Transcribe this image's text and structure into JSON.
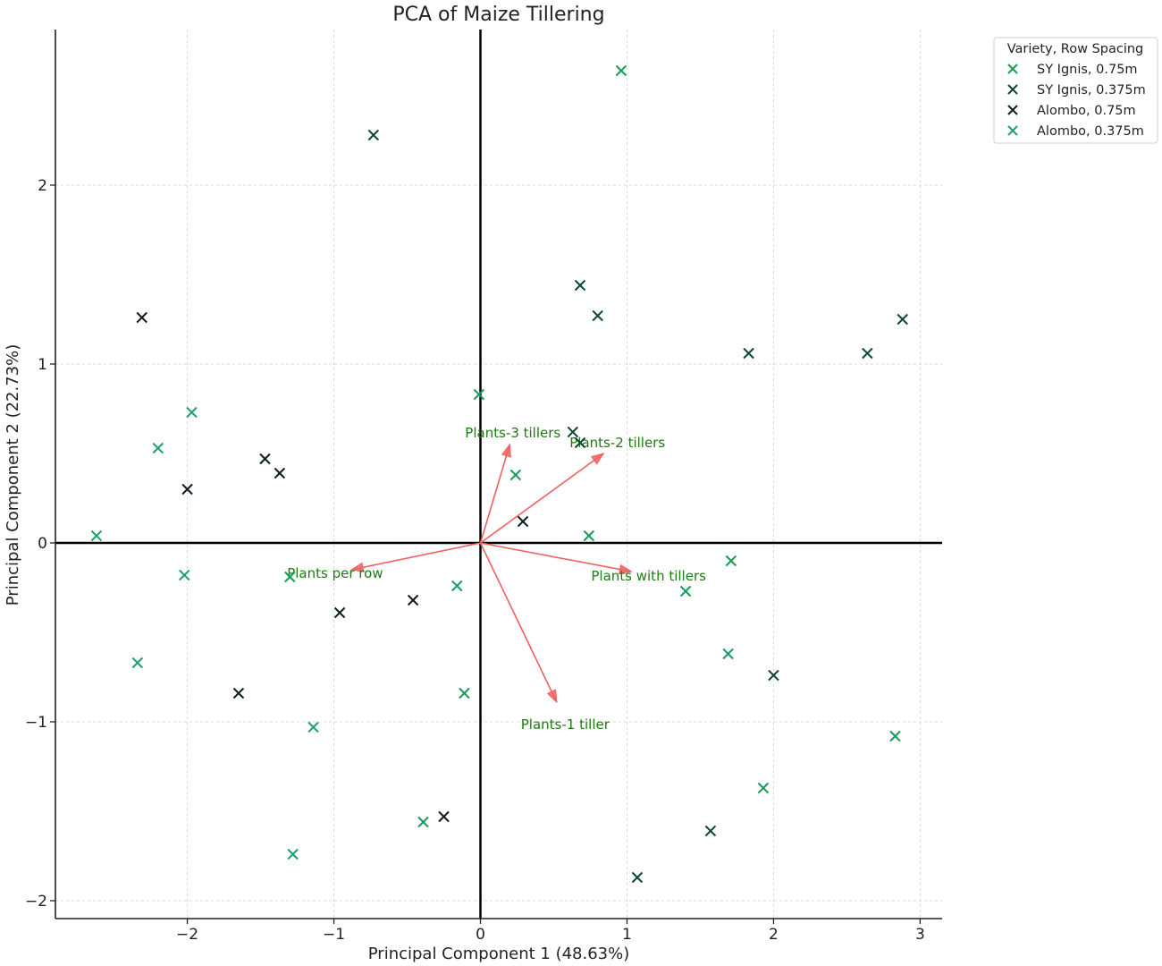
{
  "chart_data": {
    "type": "scatter",
    "title": "PCA of Maize Tillering",
    "xlabel": "Principal Component 1 (48.63%)",
    "ylabel": "Principal Component 2 (22.73%)",
    "xlim": [
      -2.9,
      3.15
    ],
    "ylim": [
      -2.1,
      2.87
    ],
    "xticks": [
      -2,
      -1,
      0,
      1,
      2,
      3
    ],
    "yticks": [
      -2,
      -1,
      0,
      1,
      2
    ],
    "xtick_labels": [
      "−2",
      "−1",
      "0",
      "1",
      "2",
      "3"
    ],
    "ytick_labels": [
      "−2",
      "−1",
      "0",
      "1",
      "2"
    ],
    "grid": true,
    "legend": {
      "title": "Variety, Row Spacing",
      "placement": "outside-top-right"
    },
    "marker": "x",
    "series": [
      {
        "name": "SY Ignis, 0.75m",
        "color": "#1b9a5c",
        "points": [
          [
            0.96,
            2.64
          ],
          [
            -0.01,
            0.83
          ],
          [
            0.24,
            0.38
          ],
          [
            0.74,
            0.04
          ],
          [
            1.71,
            -0.1
          ],
          [
            1.4,
            -0.27
          ],
          [
            1.69,
            -0.62
          ],
          [
            1.93,
            -1.37
          ],
          [
            2.83,
            -1.08
          ],
          [
            -0.11,
            -0.84
          ],
          [
            -0.39,
            -1.56
          ],
          [
            -0.16,
            -0.24
          ],
          [
            -1.3,
            -0.19
          ]
        ]
      },
      {
        "name": "SY Ignis, 0.375m",
        "color": "#0f4a30",
        "points": [
          [
            -0.73,
            2.28
          ],
          [
            0.68,
            1.44
          ],
          [
            0.8,
            1.27
          ],
          [
            1.83,
            1.06
          ],
          [
            2.64,
            1.06
          ],
          [
            2.88,
            1.25
          ],
          [
            0.63,
            0.62
          ],
          [
            0.68,
            0.56
          ],
          [
            2.0,
            -0.74
          ],
          [
            1.57,
            -1.61
          ],
          [
            1.07,
            -1.87
          ]
        ]
      },
      {
        "name": "Alombo, 0.75m",
        "color": "#0d1f18",
        "points": [
          [
            -2.31,
            1.26
          ],
          [
            -1.47,
            0.47
          ],
          [
            -1.37,
            0.39
          ],
          [
            -2.0,
            0.3
          ],
          [
            0.29,
            0.12
          ],
          [
            -0.46,
            -0.32
          ],
          [
            -0.96,
            -0.39
          ],
          [
            -1.65,
            -0.84
          ],
          [
            -0.25,
            -1.53
          ]
        ]
      },
      {
        "name": "Alombo, 0.375m",
        "color": "#22a06a",
        "points": [
          [
            -1.97,
            0.73
          ],
          [
            -2.2,
            0.53
          ],
          [
            -2.62,
            0.04
          ],
          [
            -2.02,
            -0.18
          ],
          [
            -2.34,
            -0.67
          ],
          [
            -1.14,
            -1.03
          ],
          [
            -1.28,
            -1.74
          ]
        ]
      }
    ],
    "loadings": [
      {
        "name": "Plants-3 tillers",
        "dx": 0.2,
        "dy": 0.55
      },
      {
        "name": "Plants-2 tillers",
        "dx": 0.84,
        "dy": 0.5
      },
      {
        "name": "Plants with tillers",
        "dx": 1.03,
        "dy": -0.16
      },
      {
        "name": "Plants per row",
        "dx": -0.88,
        "dy": -0.15
      },
      {
        "name": "Plants-1 tiller",
        "dx": 0.52,
        "dy": -0.89
      }
    ],
    "loading_color": "#f06060",
    "loading_label_color": "#1e7a12"
  }
}
